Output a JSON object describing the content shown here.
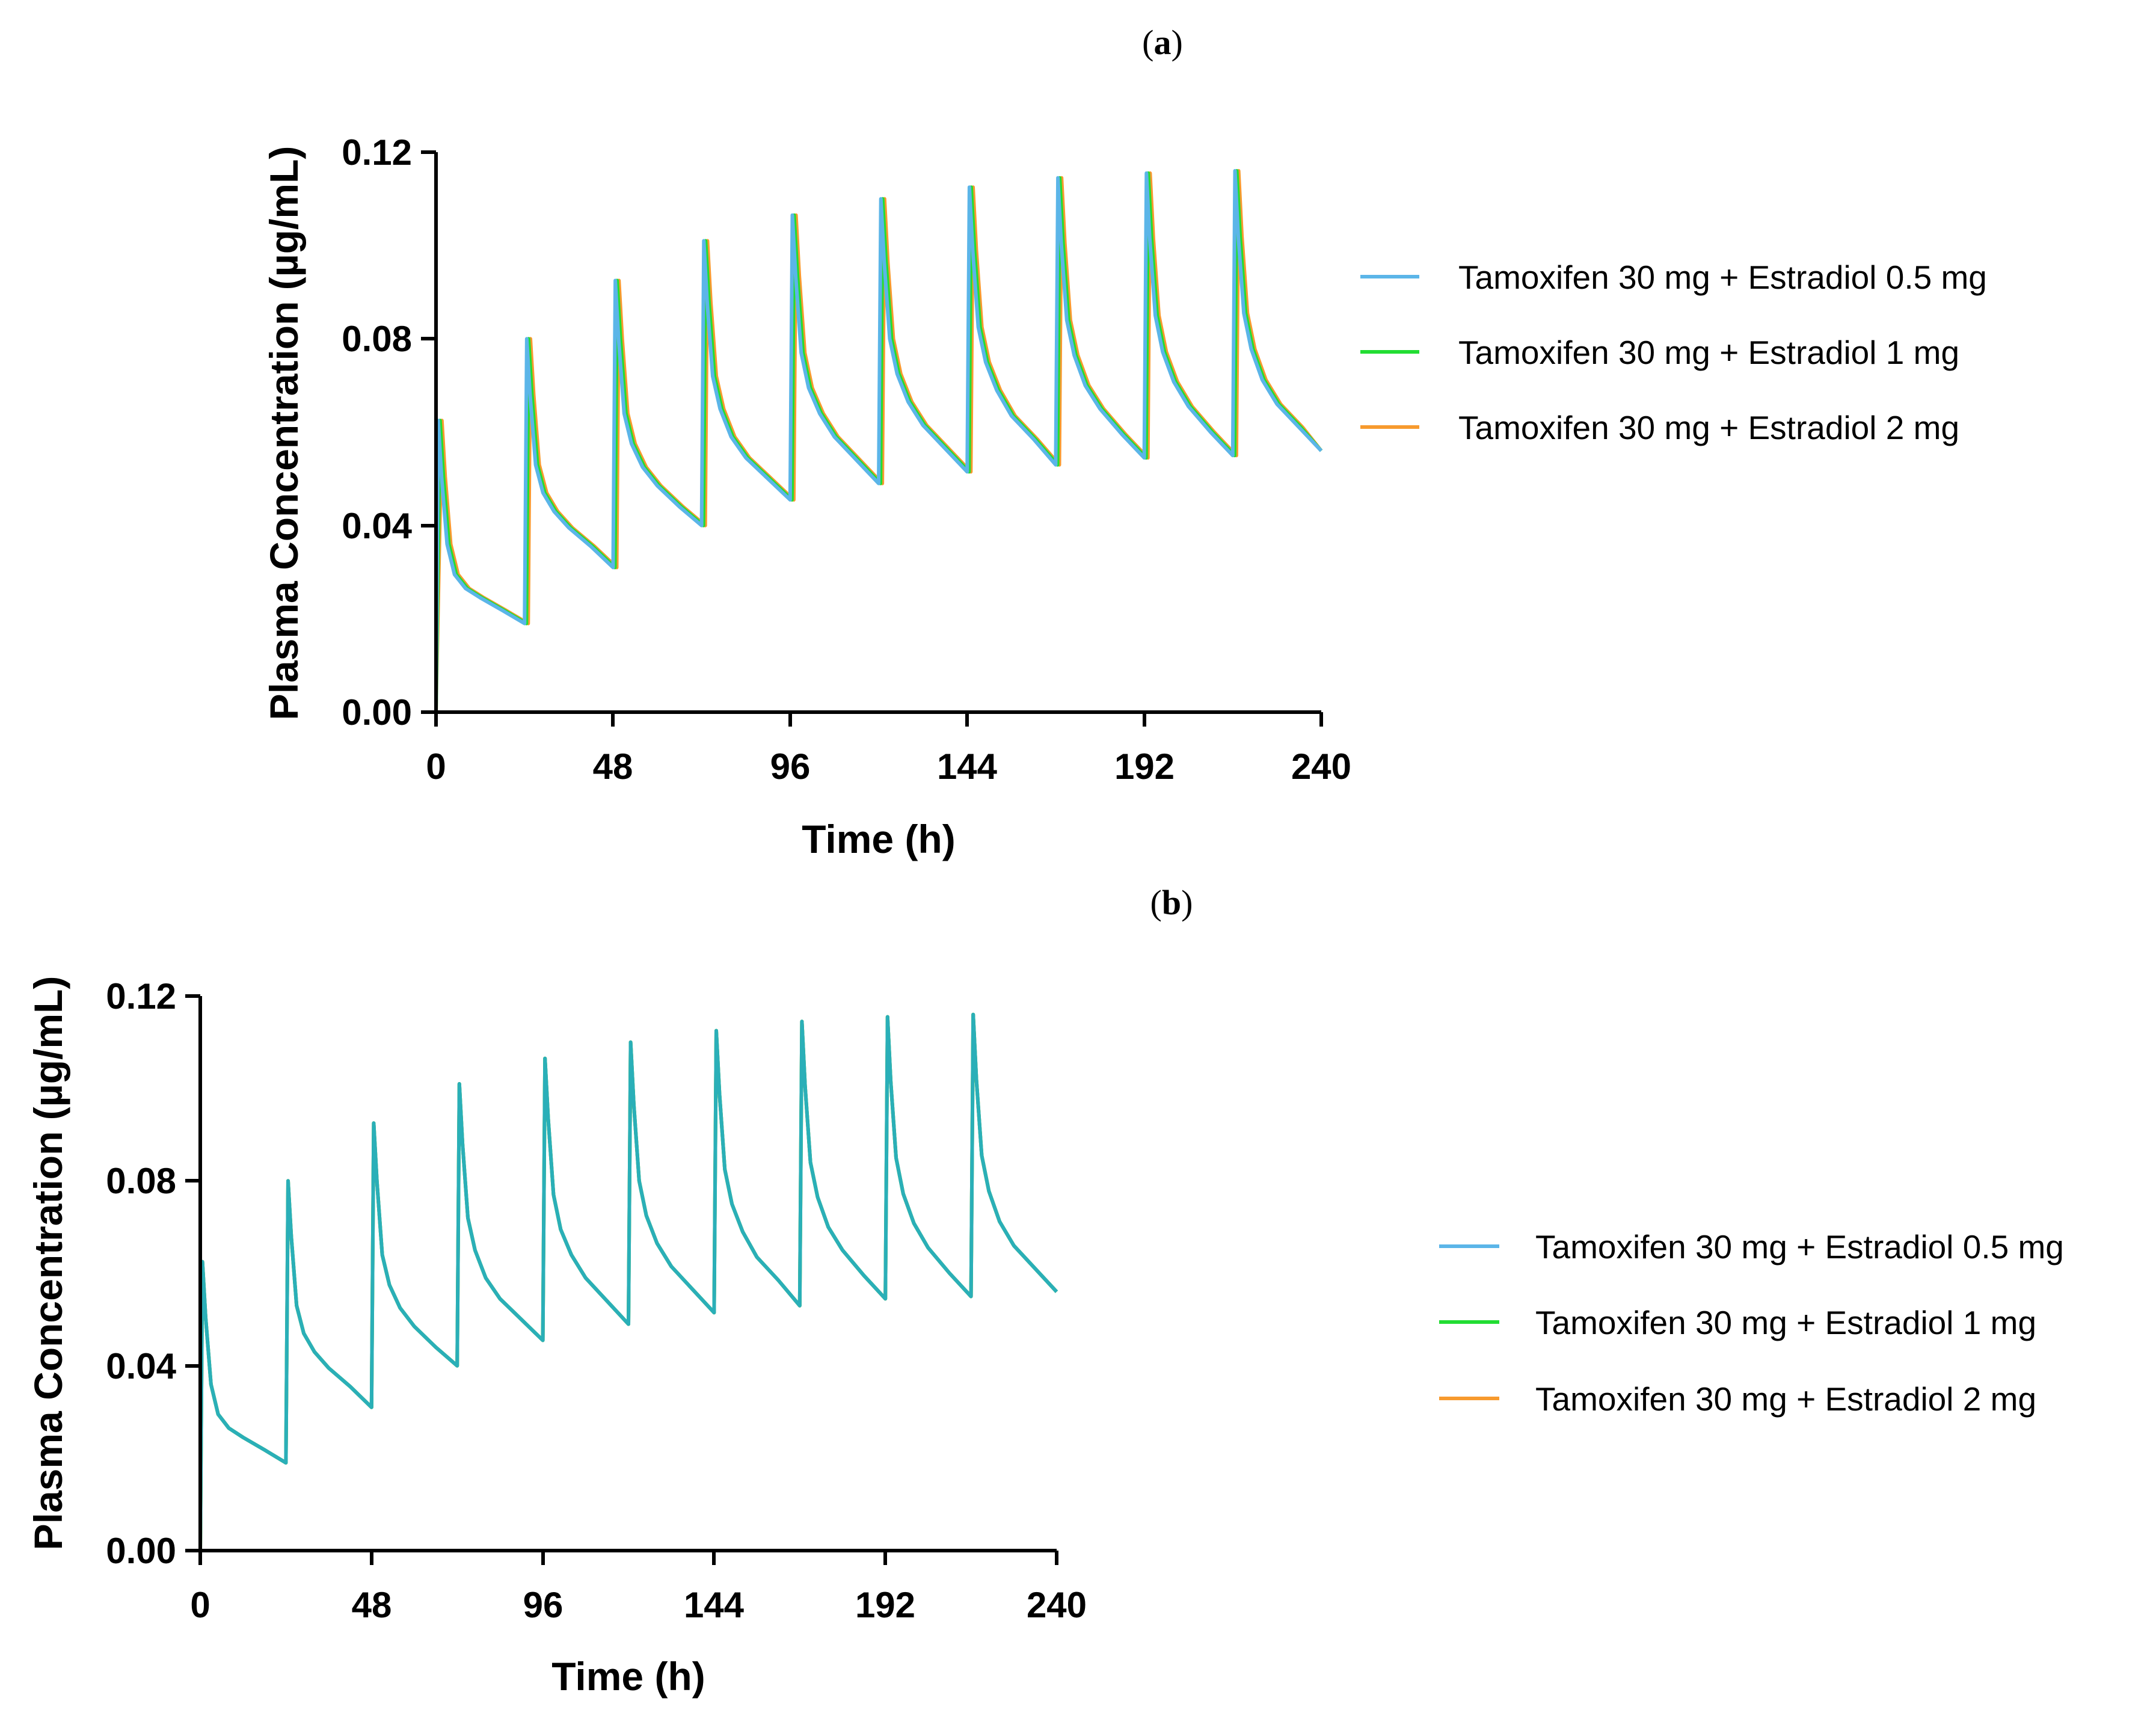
{
  "chart_data": [
    {
      "type": "line",
      "panel_label": "a",
      "title": "",
      "xlabel": "Time (h)",
      "ylabel": "Plasma Concentration (µg/mL)",
      "xlim": [
        0,
        240
      ],
      "ylim": [
        0,
        0.12
      ],
      "xticks": [
        "0",
        "48",
        "96",
        "144",
        "192",
        "240"
      ],
      "yticks": [
        "0.00",
        "0.04",
        "0.08",
        "0.12"
      ],
      "grid": false,
      "legend_position": "right",
      "dose_interval_h": 24,
      "series": [
        {
          "name": "Tamoxifen 30 mg + Estradiol 0.5 mg",
          "color": "#5BB5E8",
          "lag_h": 0,
          "x": [
            0,
            0.6,
            1.5,
            3,
            5,
            8,
            12,
            18,
            24,
            24.6,
            25.5,
            27,
            29,
            32,
            36,
            42,
            48,
            48.6,
            49.5,
            51,
            53,
            56,
            60,
            66,
            72,
            72.6,
            73.5,
            75,
            77,
            80,
            84,
            90,
            96,
            96.6,
            97.5,
            99,
            101,
            104,
            108,
            114,
            120,
            120.6,
            121.5,
            123,
            125,
            128,
            132,
            138,
            144,
            144.6,
            145.5,
            147,
            149,
            152,
            156,
            162,
            168,
            168.6,
            169.5,
            171,
            173,
            176,
            180,
            186,
            192,
            192.6,
            193.5,
            195,
            197,
            200,
            204,
            210,
            216,
            216.6,
            217.5,
            219,
            221,
            224,
            228,
            234,
            240
          ],
          "y": [
            0,
            0.0625,
            0.0505,
            0.036,
            0.0295,
            0.0265,
            0.0245,
            0.0218,
            0.019,
            0.08,
            0.068,
            0.053,
            0.047,
            0.043,
            0.0395,
            0.0355,
            0.031,
            0.0925,
            0.08,
            0.064,
            0.0575,
            0.0525,
            0.0485,
            0.044,
            0.04,
            0.101,
            0.088,
            0.072,
            0.065,
            0.059,
            0.0545,
            0.05,
            0.0455,
            0.1065,
            0.0935,
            0.077,
            0.0695,
            0.064,
            0.059,
            0.054,
            0.049,
            0.11,
            0.0965,
            0.08,
            0.0725,
            0.0665,
            0.0615,
            0.0565,
            0.0515,
            0.1125,
            0.099,
            0.0825,
            0.075,
            0.069,
            0.0635,
            0.0585,
            0.053,
            0.1145,
            0.1005,
            0.084,
            0.0765,
            0.07,
            0.065,
            0.0595,
            0.0545,
            0.1155,
            0.1015,
            0.085,
            0.0772,
            0.0708,
            0.0655,
            0.06,
            0.055,
            0.116,
            0.102,
            0.0855,
            0.0778,
            0.0712,
            0.066,
            0.061,
            0.056
          ]
        },
        {
          "name": "Tamoxifen 30 mg + Estradiol 1 mg",
          "color": "#22DD33",
          "lag_h": 0.5
        },
        {
          "name": "Tamoxifen 30 mg + Estradiol 2 mg",
          "color": "#F79A2E",
          "lag_h": 1.0
        }
      ]
    },
    {
      "type": "line",
      "panel_label": "b",
      "title": "",
      "xlabel": "Time (h)",
      "ylabel": "Plasma Concentration (µg/mL)",
      "xlim": [
        0,
        240
      ],
      "ylim": [
        0,
        0.12
      ],
      "xticks": [
        "0",
        "48",
        "96",
        "144",
        "192",
        "240"
      ],
      "yticks": [
        "0.00",
        "0.04",
        "0.08",
        "0.12"
      ],
      "grid": false,
      "legend_position": "right",
      "series": [
        {
          "name": "Tamoxifen 30 mg + Estradiol 0.5 mg",
          "color": "#5BB5E8",
          "lag_h": 0
        },
        {
          "name": "Tamoxifen 30 mg + Estradiol 1 mg",
          "color": "#22DD33",
          "lag_h": 0
        },
        {
          "name": "Tamoxifen 30 mg + Estradiol 2 mg",
          "color": "#F79A2E",
          "lag_h": 0
        }
      ],
      "visible_line_color": "#2AAFB8"
    }
  ]
}
